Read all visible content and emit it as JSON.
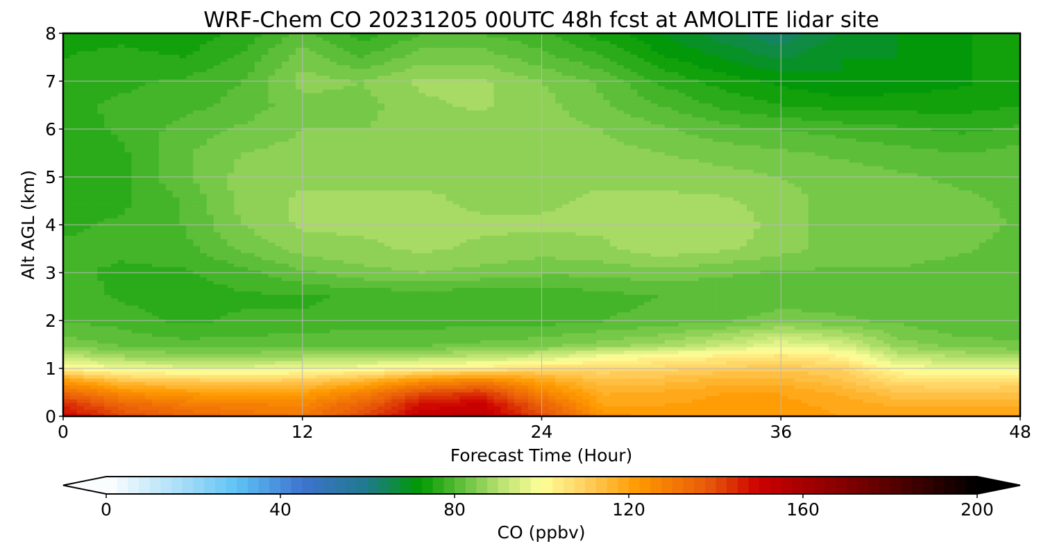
{
  "chart_data": {
    "type": "heatmap",
    "title": "WRF-Chem CO  20231205 00UTC 48h fcst at AMOLITE lidar site",
    "xlabel": "Forecast Time (Hour)",
    "ylabel": "Alt AGL (km)",
    "xlim": [
      0,
      48
    ],
    "ylim": [
      0,
      8
    ],
    "x_ticks": [
      0,
      12,
      24,
      36,
      48
    ],
    "y_ticks": [
      0,
      1,
      2,
      3,
      4,
      5,
      6,
      7,
      8
    ],
    "grid": true,
    "colorbar": {
      "label": "CO  (ppbv)",
      "range": [
        0,
        200
      ],
      "ticks": [
        0,
        40,
        80,
        120,
        160,
        200
      ],
      "extend": "both",
      "colormap_stops": [
        {
          "value": 0,
          "color": "#ffffff"
        },
        {
          "value": 20,
          "color": "#99d8f6"
        },
        {
          "value": 30,
          "color": "#5ec3f5"
        },
        {
          "value": 45,
          "color": "#3e73cf"
        },
        {
          "value": 60,
          "color": "#1f7a8c"
        },
        {
          "value": 72,
          "color": "#009a00"
        },
        {
          "value": 90,
          "color": "#b5e06e"
        },
        {
          "value": 100,
          "color": "#ffff99"
        },
        {
          "value": 110,
          "color": "#ffd060"
        },
        {
          "value": 122,
          "color": "#ff9a00"
        },
        {
          "value": 138,
          "color": "#e85a0a"
        },
        {
          "value": 150,
          "color": "#cc0000"
        },
        {
          "value": 172,
          "color": "#7a0000"
        },
        {
          "value": 200,
          "color": "#000000"
        }
      ]
    },
    "time_hours": [
      0,
      3,
      6,
      9,
      12,
      15,
      18,
      21,
      24,
      27,
      30,
      33,
      36,
      39,
      42,
      45,
      48
    ],
    "altitudes_km": [
      0,
      0.25,
      0.5,
      0.75,
      1,
      1.25,
      1.5,
      2,
      2.5,
      3,
      3.5,
      4,
      4.5,
      5,
      5.5,
      6,
      6.5,
      7,
      7.5,
      8
    ],
    "co_ppbv": [
      [
        150,
        140,
        135,
        132,
        130,
        140,
        152,
        154,
        140,
        124,
        122,
        122,
        122,
        120,
        120,
        120,
        120
      ],
      [
        145,
        135,
        130,
        128,
        127,
        136,
        148,
        151,
        136,
        120,
        120,
        121,
        121,
        119,
        117,
        117,
        117
      ],
      [
        135,
        125,
        122,
        121,
        121,
        128,
        140,
        143,
        128,
        117,
        118,
        120,
        120,
        117,
        113,
        113,
        113
      ],
      [
        122,
        113,
        111,
        110,
        111,
        116,
        124,
        128,
        120,
        113,
        114,
        116,
        116,
        113,
        107,
        106,
        107
      ],
      [
        103,
        98,
        97,
        97,
        98,
        100,
        103,
        105,
        108,
        108,
        109,
        111,
        112,
        110,
        100,
        98,
        98
      ],
      [
        92,
        88,
        87,
        87,
        88,
        89,
        90,
        91,
        94,
        99,
        102,
        104,
        106,
        103,
        92,
        90,
        88
      ],
      [
        84,
        82,
        81,
        81,
        82,
        82,
        82,
        83,
        84,
        86,
        88,
        92,
        97,
        94,
        86,
        84,
        83
      ],
      [
        80,
        79,
        77,
        78,
        78,
        79,
        79,
        79,
        79,
        80,
        81,
        82,
        84,
        83,
        82,
        80,
        80
      ],
      [
        79,
        77,
        76,
        77,
        77,
        78,
        78,
        78,
        78,
        79,
        80,
        80,
        81,
        81,
        81,
        80,
        80
      ],
      [
        78,
        77,
        77,
        79,
        82,
        84,
        85,
        84,
        83,
        83,
        84,
        83,
        82,
        82,
        82,
        81,
        80
      ],
      [
        78,
        78,
        79,
        83,
        86,
        87,
        88,
        87,
        86,
        87,
        89,
        88,
        86,
        84,
        84,
        83,
        81
      ],
      [
        77,
        78,
        80,
        85,
        88,
        88,
        88,
        88,
        88,
        88,
        89,
        90,
        86,
        84,
        85,
        84,
        82
      ],
      [
        76,
        77,
        80,
        86,
        88,
        88,
        88,
        87,
        87,
        88,
        88,
        88,
        86,
        84,
        84,
        83,
        82
      ],
      [
        76,
        77,
        82,
        86,
        87,
        87,
        87,
        87,
        87,
        87,
        87,
        86,
        85,
        84,
        83,
        82,
        82
      ],
      [
        75,
        77,
        82,
        85,
        86,
        86,
        86,
        86,
        86,
        86,
        85,
        84,
        83,
        82,
        81,
        80,
        81
      ],
      [
        76,
        78,
        81,
        83,
        85,
        85,
        86,
        86,
        86,
        85,
        83,
        81,
        80,
        79,
        78,
        77,
        78
      ],
      [
        77,
        78,
        79,
        81,
        84,
        84,
        87,
        88,
        86,
        83,
        80,
        77,
        75,
        74,
        74,
        74,
        75
      ],
      [
        76,
        77,
        78,
        80,
        86,
        85,
        88,
        88,
        85,
        82,
        77,
        74,
        72,
        70,
        71,
        72,
        74
      ],
      [
        75,
        76,
        75,
        78,
        84,
        80,
        84,
        84,
        81,
        78,
        73,
        70,
        67,
        70,
        70,
        72,
        74
      ],
      [
        74,
        74,
        73,
        76,
        81,
        76,
        80,
        80,
        78,
        74,
        70,
        66,
        63,
        68,
        70,
        72,
        74
      ]
    ]
  }
}
